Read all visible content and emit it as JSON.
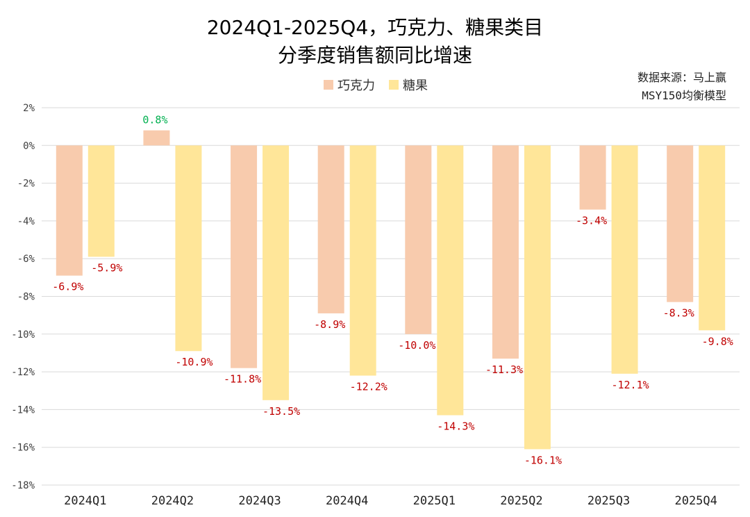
{
  "title_line1": "2024Q1-2025Q4，巧克力、糖果类目",
  "title_line2": "分季度销售额同比增速",
  "source_line1": "数据来源：马上赢",
  "source_line2": "MSY150均衡模型",
  "colors": {
    "chocolate": "#F8CBAD",
    "candy": "#FFE699",
    "negative_label": "#C00000",
    "positive_label": "#00B050",
    "grid": "#D9D9D9",
    "axis_text": "#404040"
  },
  "chart_data": {
    "type": "bar",
    "title": "2024Q1-2025Q4，巧克力、糖果类目 分季度销售额同比增速",
    "categories": [
      "2024Q1",
      "2024Q2",
      "2024Q3",
      "2024Q4",
      "2025Q1",
      "2025Q2",
      "2025Q3",
      "2025Q4"
    ],
    "series": [
      {
        "name": "巧克力",
        "values": [
          -6.9,
          0.8,
          -11.8,
          -8.9,
          -10.0,
          -11.3,
          -3.4,
          -8.3
        ],
        "labels": [
          "-6.9%",
          "0.8%",
          "-11.8%",
          "-8.9%",
          "-10.0%",
          "-11.3%",
          "-3.4%",
          "-8.3%"
        ]
      },
      {
        "name": "糖果",
        "values": [
          -5.9,
          -10.9,
          -13.5,
          -12.2,
          -14.3,
          -16.1,
          -12.1,
          -9.8
        ],
        "labels": [
          "-5.9%",
          "-10.9%",
          "-13.5%",
          "-12.2%",
          "-14.3%",
          "-16.1%",
          "-12.1%",
          "-9.8%"
        ]
      }
    ],
    "yticks": [
      "2%",
      "0%",
      "-2%",
      "-4%",
      "-6%",
      "-8%",
      "-10%",
      "-12%",
      "-14%",
      "-16%",
      "-18%"
    ],
    "ylim": [
      -18,
      2
    ],
    "grid": true,
    "legend": "top-center"
  }
}
